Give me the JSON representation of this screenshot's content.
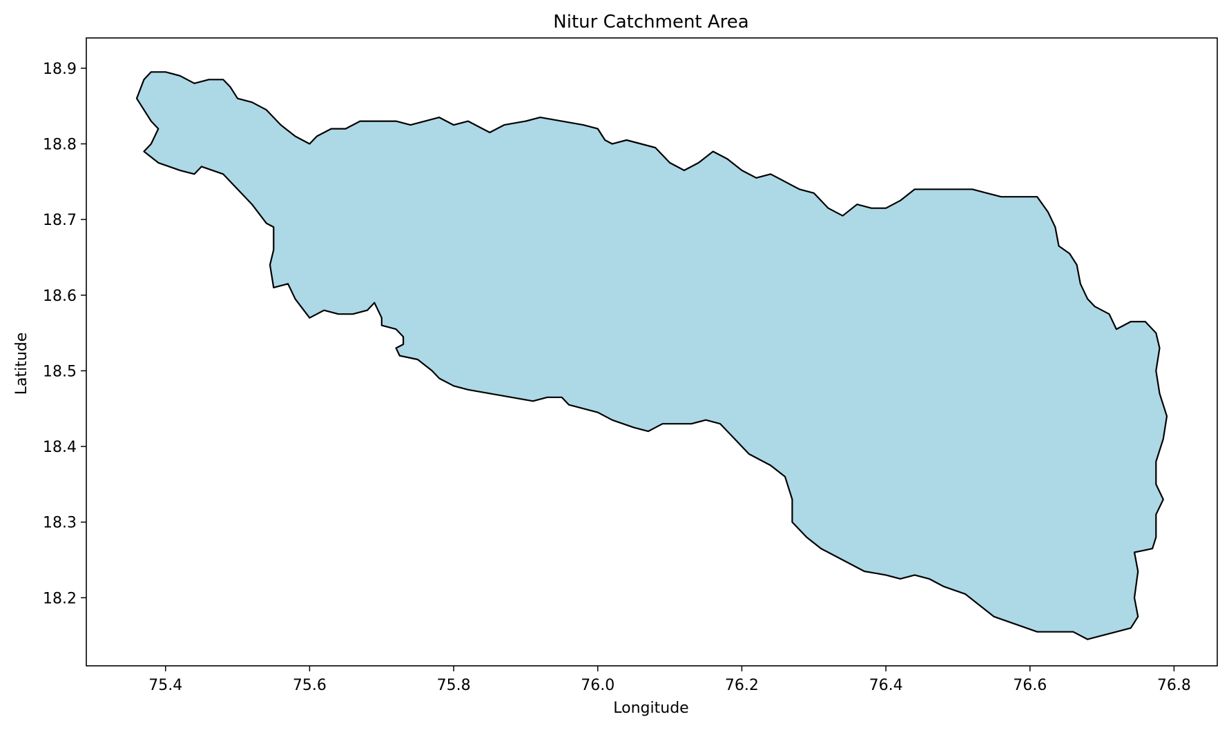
{
  "chart_data": {
    "type": "area",
    "title": "Nitur Catchment Area",
    "xlabel": "Longitude",
    "ylabel": "Latitude",
    "xlim": [
      75.29,
      76.86
    ],
    "ylim": [
      18.11,
      18.94
    ],
    "xticks": [
      75.4,
      75.6,
      75.8,
      76.0,
      76.2,
      76.4,
      76.6,
      76.8
    ],
    "xtick_labels": [
      "75.4",
      "75.6",
      "75.8",
      "76.0",
      "76.2",
      "76.4",
      "76.6",
      "76.8"
    ],
    "yticks": [
      18.2,
      18.3,
      18.4,
      18.5,
      18.6,
      18.7,
      18.8,
      18.9
    ],
    "ytick_labels": [
      "18.2",
      "18.3",
      "18.4",
      "18.5",
      "18.6",
      "18.7",
      "18.8",
      "18.9"
    ],
    "grid": false,
    "fill_color": "#add8e6",
    "edge_color": "#000000",
    "boundary": [
      [
        75.37,
        18.79
      ],
      [
        75.39,
        18.775
      ],
      [
        75.42,
        18.765
      ],
      [
        75.44,
        18.76
      ],
      [
        75.45,
        18.77
      ],
      [
        75.48,
        18.76
      ],
      [
        75.5,
        18.74
      ],
      [
        75.52,
        18.72
      ],
      [
        75.54,
        18.695
      ],
      [
        75.55,
        18.69
      ],
      [
        75.55,
        18.66
      ],
      [
        75.545,
        18.64
      ],
      [
        75.55,
        18.61
      ],
      [
        75.57,
        18.615
      ],
      [
        75.58,
        18.595
      ],
      [
        75.6,
        18.57
      ],
      [
        75.62,
        18.58
      ],
      [
        75.64,
        18.575
      ],
      [
        75.66,
        18.575
      ],
      [
        75.68,
        18.58
      ],
      [
        75.69,
        18.59
      ],
      [
        75.7,
        18.57
      ],
      [
        75.7,
        18.56
      ],
      [
        75.72,
        18.555
      ],
      [
        75.73,
        18.545
      ],
      [
        75.73,
        18.535
      ],
      [
        75.72,
        18.53
      ],
      [
        75.725,
        18.52
      ],
      [
        75.75,
        18.515
      ],
      [
        75.77,
        18.5
      ],
      [
        75.78,
        18.49
      ],
      [
        75.8,
        18.48
      ],
      [
        75.82,
        18.475
      ],
      [
        75.85,
        18.47
      ],
      [
        75.88,
        18.465
      ],
      [
        75.91,
        18.46
      ],
      [
        75.93,
        18.465
      ],
      [
        75.95,
        18.465
      ],
      [
        75.96,
        18.455
      ],
      [
        75.98,
        18.45
      ],
      [
        76.0,
        18.445
      ],
      [
        76.02,
        18.435
      ],
      [
        76.05,
        18.425
      ],
      [
        76.07,
        18.42
      ],
      [
        76.09,
        18.43
      ],
      [
        76.11,
        18.43
      ],
      [
        76.13,
        18.43
      ],
      [
        76.15,
        18.435
      ],
      [
        76.17,
        18.43
      ],
      [
        76.19,
        18.41
      ],
      [
        76.21,
        18.39
      ],
      [
        76.24,
        18.375
      ],
      [
        76.26,
        18.36
      ],
      [
        76.27,
        18.33
      ],
      [
        76.27,
        18.3
      ],
      [
        76.29,
        18.28
      ],
      [
        76.31,
        18.265
      ],
      [
        76.33,
        18.255
      ],
      [
        76.35,
        18.245
      ],
      [
        76.37,
        18.235
      ],
      [
        76.4,
        18.23
      ],
      [
        76.42,
        18.225
      ],
      [
        76.44,
        18.23
      ],
      [
        76.46,
        18.225
      ],
      [
        76.48,
        18.215
      ],
      [
        76.51,
        18.205
      ],
      [
        76.53,
        18.19
      ],
      [
        76.55,
        18.175
      ],
      [
        76.58,
        18.165
      ],
      [
        76.61,
        18.155
      ],
      [
        76.64,
        18.155
      ],
      [
        76.66,
        18.155
      ],
      [
        76.68,
        18.145
      ],
      [
        76.7,
        18.15
      ],
      [
        76.72,
        18.155
      ],
      [
        76.74,
        18.16
      ],
      [
        76.75,
        18.175
      ],
      [
        76.745,
        18.2
      ],
      [
        76.75,
        18.235
      ],
      [
        76.745,
        18.26
      ],
      [
        76.77,
        18.265
      ],
      [
        76.775,
        18.28
      ],
      [
        76.775,
        18.31
      ],
      [
        76.785,
        18.33
      ],
      [
        76.775,
        18.35
      ],
      [
        76.775,
        18.38
      ],
      [
        76.785,
        18.41
      ],
      [
        76.79,
        18.44
      ],
      [
        76.78,
        18.47
      ],
      [
        76.775,
        18.5
      ],
      [
        76.78,
        18.53
      ],
      [
        76.775,
        18.55
      ],
      [
        76.76,
        18.565
      ],
      [
        76.74,
        18.565
      ],
      [
        76.72,
        18.555
      ],
      [
        76.71,
        18.575
      ],
      [
        76.69,
        18.585
      ],
      [
        76.68,
        18.595
      ],
      [
        76.67,
        18.615
      ],
      [
        76.665,
        18.64
      ],
      [
        76.655,
        18.655
      ],
      [
        76.64,
        18.665
      ],
      [
        76.635,
        18.69
      ],
      [
        76.625,
        18.71
      ],
      [
        76.61,
        18.73
      ],
      [
        76.59,
        18.73
      ],
      [
        76.56,
        18.73
      ],
      [
        76.54,
        18.735
      ],
      [
        76.52,
        18.74
      ],
      [
        76.49,
        18.74
      ],
      [
        76.46,
        18.74
      ],
      [
        76.44,
        18.74
      ],
      [
        76.42,
        18.725
      ],
      [
        76.4,
        18.715
      ],
      [
        76.38,
        18.715
      ],
      [
        76.36,
        18.72
      ],
      [
        76.34,
        18.705
      ],
      [
        76.32,
        18.715
      ],
      [
        76.3,
        18.735
      ],
      [
        76.28,
        18.74
      ],
      [
        76.25,
        18.755
      ],
      [
        76.24,
        18.76
      ],
      [
        76.22,
        18.755
      ],
      [
        76.2,
        18.765
      ],
      [
        76.18,
        18.78
      ],
      [
        76.16,
        18.79
      ],
      [
        76.14,
        18.775
      ],
      [
        76.12,
        18.765
      ],
      [
        76.1,
        18.775
      ],
      [
        76.08,
        18.795
      ],
      [
        76.06,
        18.8
      ],
      [
        76.04,
        18.805
      ],
      [
        76.02,
        18.8
      ],
      [
        76.01,
        18.805
      ],
      [
        76.0,
        18.82
      ],
      [
        75.98,
        18.825
      ],
      [
        75.95,
        18.83
      ],
      [
        75.92,
        18.835
      ],
      [
        75.9,
        18.83
      ],
      [
        75.87,
        18.825
      ],
      [
        75.85,
        18.815
      ],
      [
        75.82,
        18.83
      ],
      [
        75.8,
        18.825
      ],
      [
        75.78,
        18.835
      ],
      [
        75.76,
        18.83
      ],
      [
        75.74,
        18.825
      ],
      [
        75.72,
        18.83
      ],
      [
        75.69,
        18.83
      ],
      [
        75.67,
        18.83
      ],
      [
        75.65,
        18.82
      ],
      [
        75.63,
        18.82
      ],
      [
        75.61,
        18.81
      ],
      [
        75.6,
        18.8
      ],
      [
        75.58,
        18.81
      ],
      [
        75.56,
        18.825
      ],
      [
        75.54,
        18.845
      ],
      [
        75.52,
        18.855
      ],
      [
        75.5,
        18.86
      ],
      [
        75.49,
        18.875
      ],
      [
        75.48,
        18.885
      ],
      [
        75.46,
        18.885
      ],
      [
        75.44,
        18.88
      ],
      [
        75.42,
        18.89
      ],
      [
        75.4,
        18.895
      ],
      [
        75.38,
        18.895
      ],
      [
        75.37,
        18.885
      ],
      [
        75.36,
        18.86
      ],
      [
        75.37,
        18.845
      ],
      [
        75.38,
        18.83
      ],
      [
        75.39,
        18.82
      ],
      [
        75.38,
        18.8
      ],
      [
        75.37,
        18.79
      ]
    ]
  }
}
